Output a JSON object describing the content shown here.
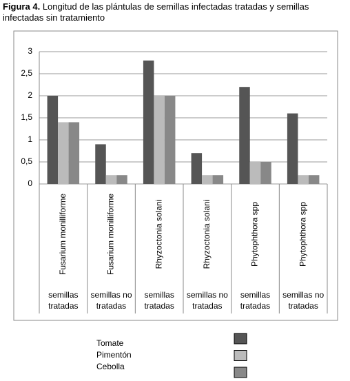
{
  "chart_data": {
    "type": "bar",
    "title_label": "Figura 4.",
    "title": "Longitud de las plántulas de semillas infectadas tratadas y semillas infectadas sin tratamiento",
    "categories": [
      "Fusarium monilliforme",
      "Fusarium monilliforme",
      "Rhyzoctonia solani",
      "Rhyzoctonia solani",
      "Phytophthora spp",
      "Phytophthora spp"
    ],
    "groups": [
      "semillas tratadas",
      "semillas no tratadas",
      "semillas tratadas",
      "semillas no tratadas",
      "semillas tratadas",
      "semillas no tratadas"
    ],
    "series": [
      {
        "name": "Tomate",
        "color": "#555555",
        "values": [
          2,
          0.9,
          2.8,
          0.7,
          2.2,
          1.6
        ]
      },
      {
        "name": "Pimentón",
        "color": "#bbbbbb",
        "values": [
          1.4,
          0.2,
          2,
          0.2,
          0.5,
          0.2
        ]
      },
      {
        "name": "Cebolla",
        "color": "#888888",
        "values": [
          1.4,
          0.2,
          2,
          0.2,
          0.5,
          0.2
        ]
      }
    ],
    "ylim": [
      0,
      3
    ],
    "yticks": [
      0,
      {
        "value": 0.5,
        "label": "0,5"
      },
      1,
      {
        "value": 1.5,
        "label": "1,5"
      },
      2,
      {
        "value": 2.5,
        "label": "2,5"
      },
      3
    ],
    "grid": true
  }
}
